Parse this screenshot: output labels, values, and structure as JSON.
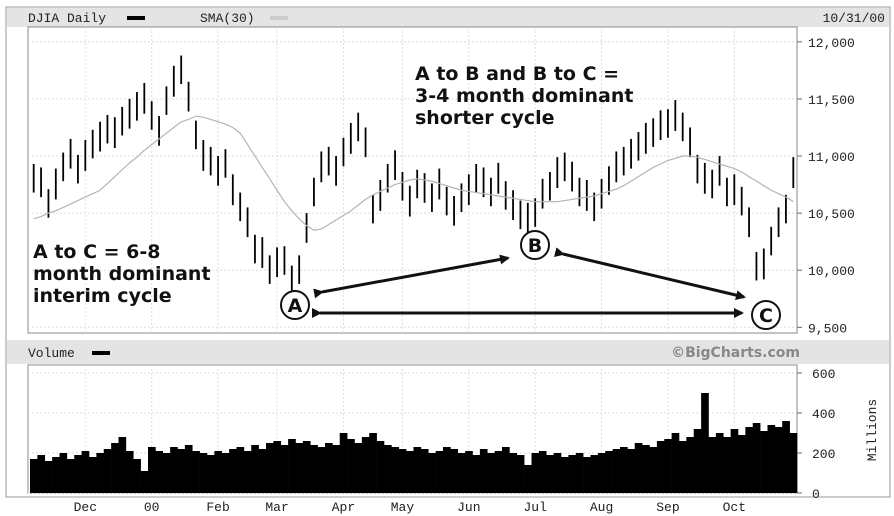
{
  "chart_data": {
    "type": "ohlc",
    "date_label": "10/31/00",
    "categories": [
      null,
      null,
      null,
      null,
      null,
      null,
      null,
      "Dec",
      null,
      null,
      null,
      null,
      null,
      null,
      null,
      null,
      "00",
      null,
      null,
      null,
      null,
      null,
      null,
      null,
      null,
      "Feb",
      null,
      null,
      null,
      null,
      null,
      null,
      null,
      "Mar",
      null,
      null,
      null,
      null,
      null,
      null,
      null,
      null,
      "Apr",
      null,
      null,
      null,
      null,
      null,
      null,
      null,
      "May",
      null,
      null,
      null,
      null,
      null,
      null,
      null,
      null,
      "Jun",
      null,
      null,
      null,
      null,
      null,
      null,
      null,
      null,
      "Jul",
      null,
      null,
      null,
      null,
      null,
      null,
      null,
      null,
      "Aug",
      null,
      null,
      null,
      null,
      null,
      null,
      null,
      null,
      "Sep",
      null,
      null,
      null,
      null,
      null,
      null,
      null,
      null,
      "Oct",
      null,
      null,
      null,
      null,
      null,
      null,
      null,
      null
    ],
    "series": [
      {
        "name": "DJIA Daily",
        "color": "#000000",
        "high": [
          10930,
          10900,
          10710,
          10890,
          11030,
          11150,
          11010,
          11140,
          11230,
          11300,
          11360,
          11340,
          11430,
          11500,
          11560,
          11640,
          11480,
          11350,
          11610,
          11790,
          11880,
          11650,
          11310,
          11140,
          11080,
          11000,
          11060,
          10840,
          10680,
          10550,
          10310,
          10290,
          10130,
          10200,
          10210,
          10040,
          10130,
          10500,
          10810,
          11040,
          11080,
          11000,
          11160,
          11290,
          11380,
          11250,
          10660,
          10790,
          10930,
          11050,
          10860,
          10740,
          10880,
          10850,
          10760,
          10890,
          10730,
          10650,
          10760,
          10840,
          10930,
          10900,
          10810,
          10940,
          10780,
          10700,
          10610,
          10590,
          10630,
          10800,
          10860,
          10990,
          11030,
          10950,
          10810,
          10790,
          10680,
          10800,
          10910,
          11040,
          11080,
          11150,
          11210,
          11290,
          11330,
          11400,
          11410,
          11490,
          11380,
          11250,
          11010,
          10940,
          10880,
          11000,
          10810,
          10840,
          10730,
          10550,
          10160,
          10190,
          10380,
          10550,
          10660,
          10990
        ],
        "low": [
          10680,
          10640,
          10460,
          10620,
          10780,
          10890,
          10760,
          10870,
          10980,
          11040,
          11110,
          11070,
          11180,
          11240,
          11310,
          11370,
          11230,
          11090,
          11360,
          11520,
          11630,
          11390,
          11060,
          10870,
          10830,
          10740,
          10810,
          10570,
          10430,
          10290,
          10060,
          10020,
          9880,
          9940,
          9960,
          9770,
          9880,
          10240,
          10560,
          10770,
          10830,
          10740,
          10910,
          11020,
          11130,
          10990,
          10410,
          10520,
          10680,
          10790,
          10610,
          10470,
          10630,
          10590,
          10510,
          10620,
          10480,
          10390,
          10510,
          10570,
          10680,
          10640,
          10560,
          10670,
          10530,
          10440,
          10360,
          10320,
          10380,
          10540,
          10610,
          10720,
          10780,
          10690,
          10560,
          10520,
          10430,
          10540,
          10660,
          10770,
          10830,
          10890,
          10960,
          11020,
          11080,
          11140,
          11160,
          11220,
          11130,
          10990,
          10760,
          10670,
          10630,
          10740,
          10560,
          10570,
          10480,
          10290,
          9910,
          9920,
          10130,
          10290,
          10410,
          10720
        ]
      },
      {
        "name": "SMA(30)",
        "color": "#b4b4b4",
        "values": [
          10450,
          10470,
          10500,
          10520,
          10550,
          10580,
          10610,
          10640,
          10670,
          10700,
          10760,
          10820,
          10880,
          10940,
          10990,
          11050,
          11100,
          11150,
          11200,
          11250,
          11300,
          11320,
          11350,
          11340,
          11320,
          11300,
          11280,
          11250,
          11200,
          11100,
          11000,
          10900,
          10800,
          10700,
          10600,
          10520,
          10450,
          10390,
          10350,
          10360,
          10400,
          10440,
          10480,
          10520,
          10570,
          10620,
          10660,
          10690,
          10720,
          10750,
          10770,
          10790,
          10800,
          10790,
          10780,
          10760,
          10740,
          10720,
          10700,
          10690,
          10680,
          10670,
          10660,
          10650,
          10640,
          10630,
          10620,
          10610,
          10600,
          10600,
          10600,
          10600,
          10610,
          10620,
          10630,
          10640,
          10650,
          10670,
          10690,
          10710,
          10740,
          10780,
          10820,
          10860,
          10900,
          10930,
          10960,
          10980,
          11000,
          11000,
          10990,
          10970,
          10950,
          10930,
          10910,
          10890,
          10860,
          10820,
          10780,
          10740,
          10700,
          10670,
          10640,
          10600
        ]
      }
    ],
    "ylim": [
      9450,
      12130
    ],
    "yticks": [
      {
        "value": 9500,
        "label": "9,500"
      },
      {
        "value": 10000,
        "label": "10,000"
      },
      {
        "value": 10500,
        "label": "10,500"
      },
      {
        "value": 11000,
        "label": "11,000"
      },
      {
        "value": 11500,
        "label": "11,500"
      },
      {
        "value": 12000,
        "label": "12,000"
      }
    ],
    "grid": true,
    "annotations": [
      {
        "lines": [
          "A to B and B to C =",
          "3-4 month dominant",
          "shorter cycle"
        ]
      },
      {
        "lines": [
          "A to C = 6-8",
          "month dominant",
          "interim cycle"
        ]
      }
    ],
    "points": [
      "A",
      "B",
      "C"
    ],
    "volume": {
      "name": "Volume",
      "color": "#000000",
      "credit": "©BigCharts.com",
      "ylabel": "Millions",
      "values": [
        170,
        190,
        160,
        180,
        200,
        170,
        190,
        210,
        180,
        200,
        220,
        250,
        280,
        210,
        170,
        110,
        230,
        210,
        200,
        230,
        220,
        240,
        210,
        200,
        190,
        210,
        200,
        220,
        230,
        210,
        240,
        220,
        250,
        260,
        240,
        270,
        250,
        260,
        240,
        230,
        250,
        240,
        300,
        270,
        250,
        280,
        300,
        260,
        240,
        230,
        220,
        210,
        230,
        220,
        200,
        210,
        230,
        220,
        200,
        210,
        190,
        220,
        200,
        210,
        230,
        200,
        190,
        140,
        200,
        210,
        190,
        200,
        180,
        190,
        200,
        180,
        190,
        200,
        210,
        220,
        230,
        220,
        250,
        240,
        230,
        260,
        270,
        300,
        260,
        280,
        320,
        500,
        280,
        300,
        280,
        320,
        290,
        330,
        350,
        310,
        340,
        330,
        360,
        300
      ],
      "ylim": [
        0,
        640
      ],
      "yticks": [
        0,
        200,
        400,
        600
      ]
    }
  }
}
